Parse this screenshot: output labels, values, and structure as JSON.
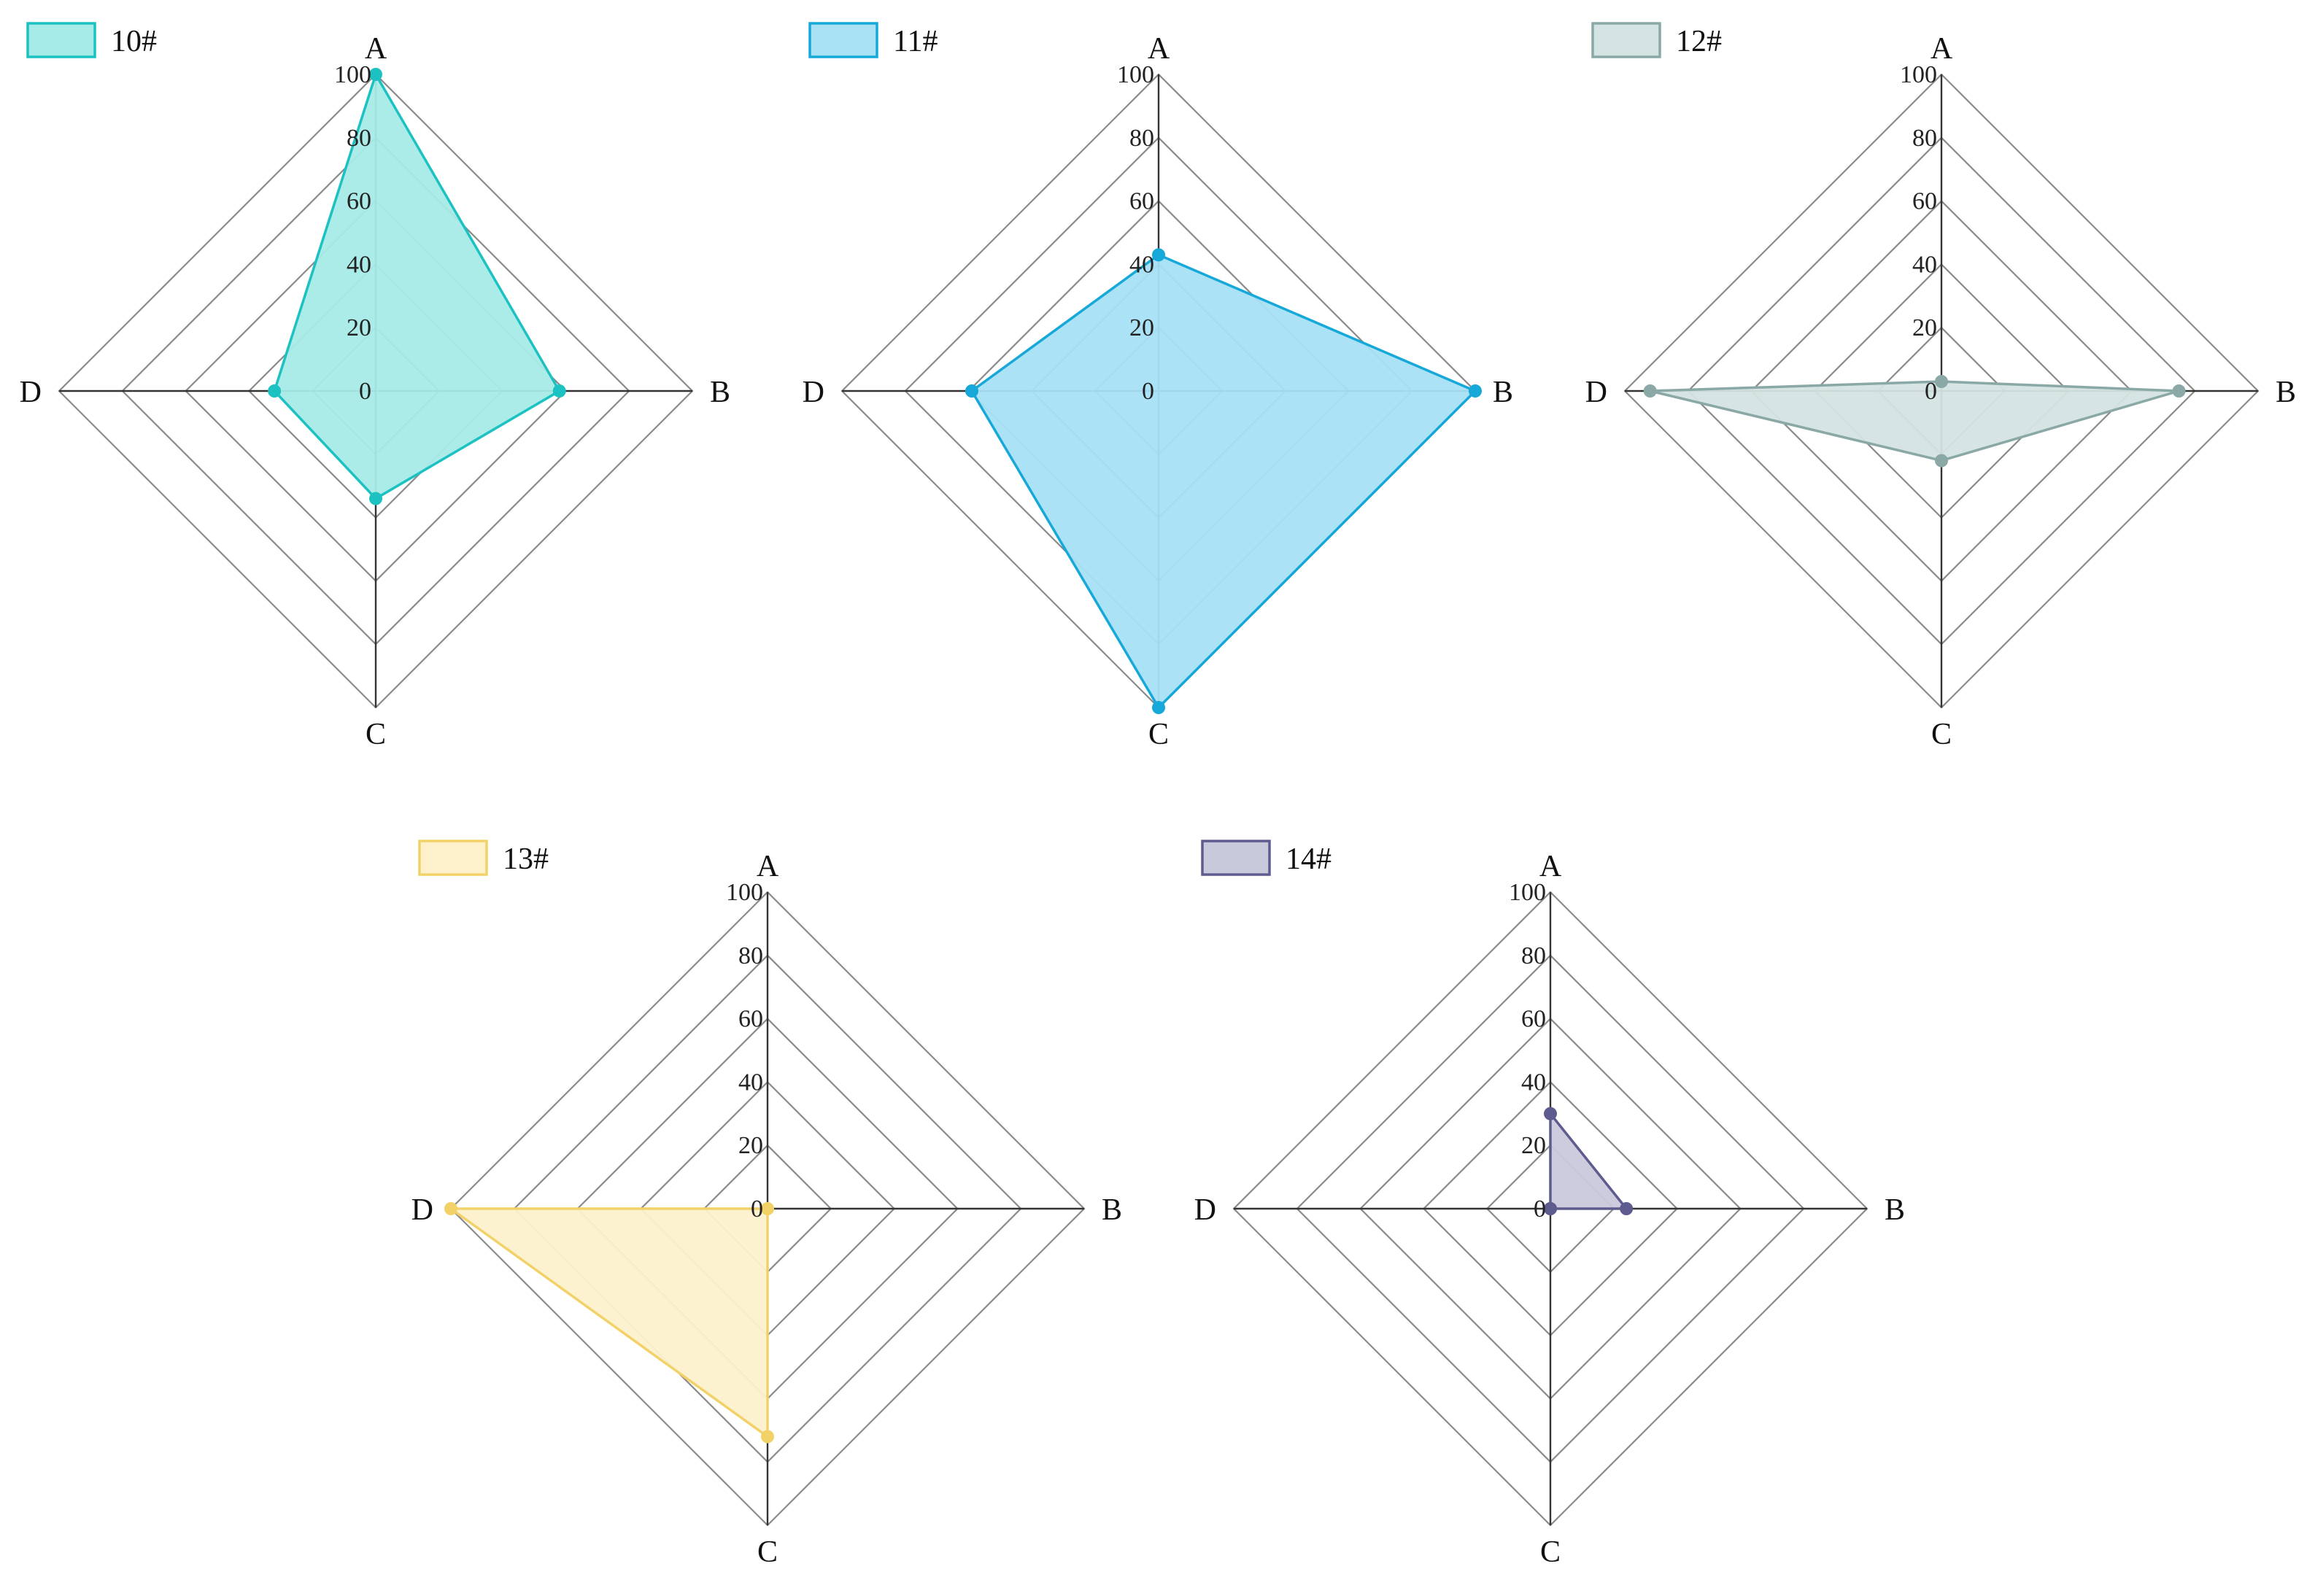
{
  "chart_data": [
    {
      "type": "radar",
      "series_name": "10#",
      "axes": [
        "A",
        "B",
        "C",
        "D"
      ],
      "values": [
        100,
        58,
        34,
        32
      ],
      "rlim": [
        0,
        100
      ],
      "ticks": [
        "0",
        "20",
        "40",
        "60",
        "80",
        "100"
      ],
      "color": "#1cc2c2",
      "fill": "#a6ebe8",
      "legend": "top-left"
    },
    {
      "type": "radar",
      "series_name": "11#",
      "axes": [
        "A",
        "B",
        "C",
        "D"
      ],
      "values": [
        43,
        100,
        100,
        59
      ],
      "rlim": [
        0,
        100
      ],
      "ticks": [
        "0",
        "20",
        "40",
        "60",
        "80",
        "100"
      ],
      "color": "#16a8d8",
      "fill": "#a8e0f4",
      "legend": "top-left"
    },
    {
      "type": "radar",
      "series_name": "12#",
      "axes": [
        "A",
        "B",
        "C",
        "D"
      ],
      "values": [
        3,
        75,
        22,
        92
      ],
      "rlim": [
        0,
        100
      ],
      "ticks": [
        "0",
        "20",
        "40",
        "60",
        "80",
        "100"
      ],
      "color": "#8aa8a6",
      "fill": "#d4e4e2",
      "legend": "top-left"
    },
    {
      "type": "radar",
      "series_name": "13#",
      "axes": [
        "A",
        "B",
        "C",
        "D"
      ],
      "values": [
        0,
        0,
        72,
        100
      ],
      "rlim": [
        0,
        100
      ],
      "ticks": [
        "0",
        "20",
        "40",
        "60",
        "80",
        "100"
      ],
      "color": "#f2d268",
      "fill": "#fdf1cc",
      "legend": "top-left"
    },
    {
      "type": "radar",
      "series_name": "14#",
      "axes": [
        "A",
        "B",
        "C",
        "D"
      ],
      "values": [
        30,
        24,
        0,
        0
      ],
      "rlim": [
        0,
        100
      ],
      "ticks": [
        "0",
        "20",
        "40",
        "60",
        "80",
        "100"
      ],
      "color": "#5e5c8e",
      "fill": "#c9c9dc",
      "legend": "top-left"
    }
  ]
}
